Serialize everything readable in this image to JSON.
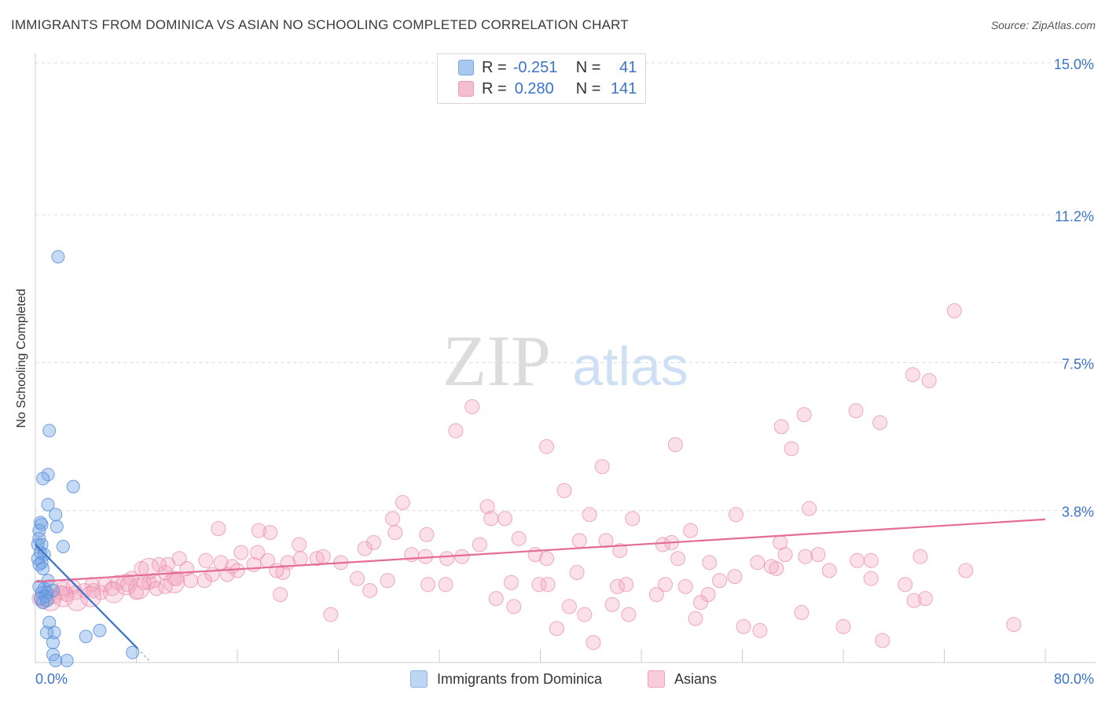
{
  "title": "IMMIGRANTS FROM DOMINICA VS ASIAN NO SCHOOLING COMPLETED CORRELATION CHART",
  "source": "Source: ZipAtlas.com",
  "watermark": {
    "zip": "ZIP",
    "atlas": "atlas"
  },
  "legend": {
    "r_label": "R =",
    "n_label": "N =",
    "rows": [
      {
        "r": "-0.251",
        "n": "41",
        "color": "#a9c8ef",
        "border": "#7da8e0"
      },
      {
        "r": "0.280",
        "n": "141",
        "color": "#f6bfd0",
        "border": "#ee9ab4"
      }
    ]
  },
  "bottom_legend": [
    {
      "label": "Immigrants from Dominica",
      "color": "#bcd6f4",
      "border": "#8db4e6"
    },
    {
      "label": "Asians",
      "color": "#f9ccd9",
      "border": "#efa3bb"
    }
  ],
  "chart_data": {
    "type": "scatter",
    "title": "IMMIGRANTS FROM DOMINICA VS ASIAN NO SCHOOLING COMPLETED CORRELATION CHART",
    "xlabel": "",
    "ylabel": "No Schooling Completed",
    "xlim": [
      0,
      80
    ],
    "ylim": [
      0,
      15
    ],
    "x_tick_labels": [
      "0.0%",
      "80.0%"
    ],
    "y_ticks": [
      {
        "value": 3.8,
        "label": "3.8%"
      },
      {
        "value": 7.5,
        "label": "7.5%"
      },
      {
        "value": 11.2,
        "label": "11.2%"
      },
      {
        "value": 15.0,
        "label": "15.0%"
      }
    ],
    "grid": true,
    "legend_position": "top-center",
    "series": [
      {
        "name": "Immigrants from Dominica",
        "color": "#6fa3e6",
        "stroke": "#5a8fd8",
        "trend": {
          "x": [
            0.0,
            8.1
          ],
          "y": [
            2.95,
            0.35
          ],
          "color": "#3b73c8",
          "dash_to_x": 9.0,
          "dash_to_y": 0.05
        },
        "points": [
          [
            1.8,
            10.15
          ],
          [
            1.1,
            5.8
          ],
          [
            1.0,
            4.7
          ],
          [
            0.6,
            4.6
          ],
          [
            3.0,
            4.4
          ],
          [
            1.0,
            3.95
          ],
          [
            1.6,
            3.7
          ],
          [
            0.4,
            3.5
          ],
          [
            0.5,
            3.45
          ],
          [
            0.3,
            3.3
          ],
          [
            1.7,
            3.4
          ],
          [
            0.3,
            3.1
          ],
          [
            0.2,
            2.95
          ],
          [
            0.5,
            2.95
          ],
          [
            2.2,
            2.9
          ],
          [
            0.4,
            2.75
          ],
          [
            0.7,
            2.7
          ],
          [
            0.2,
            2.6
          ],
          [
            0.5,
            2.5
          ],
          [
            0.3,
            2.45
          ],
          [
            0.6,
            2.35
          ],
          [
            1.0,
            2.05
          ],
          [
            0.7,
            1.85
          ],
          [
            1.4,
            1.8
          ],
          [
            0.9,
            1.75
          ],
          [
            0.5,
            1.75
          ],
          [
            0.8,
            1.65
          ],
          [
            0.4,
            1.6
          ],
          [
            0.9,
            1.55
          ],
          [
            0.6,
            1.5
          ],
          [
            1.1,
            1.0
          ],
          [
            1.5,
            0.75
          ],
          [
            0.9,
            0.75
          ],
          [
            5.1,
            0.8
          ],
          [
            4.0,
            0.65
          ],
          [
            1.4,
            0.5
          ],
          [
            1.4,
            0.2
          ],
          [
            2.5,
            0.05
          ],
          [
            7.7,
            0.25
          ],
          [
            1.6,
            0.05
          ],
          [
            0.3,
            1.9
          ]
        ]
      },
      {
        "name": "Asians",
        "color": "#f3a7bf",
        "stroke": "#ea8fab",
        "trend": {
          "x": [
            0.0,
            80.0
          ],
          "y": [
            2.02,
            3.58
          ],
          "color": "#e46c96"
        },
        "points": [
          [
            72.8,
            8.8
          ],
          [
            69.5,
            7.2
          ],
          [
            70.8,
            7.05
          ],
          [
            60.9,
            6.2
          ],
          [
            59.1,
            5.9
          ],
          [
            65.0,
            6.3
          ],
          [
            66.9,
            6.0
          ],
          [
            34.6,
            6.4
          ],
          [
            33.3,
            5.8
          ],
          [
            40.5,
            5.4
          ],
          [
            50.7,
            5.45
          ],
          [
            59.9,
            5.35
          ],
          [
            44.9,
            4.9
          ],
          [
            41.9,
            4.3
          ],
          [
            29.1,
            4.0
          ],
          [
            35.8,
            3.9
          ],
          [
            37.2,
            3.6
          ],
          [
            36.1,
            3.6
          ],
          [
            43.9,
            3.7
          ],
          [
            47.3,
            3.6
          ],
          [
            55.5,
            3.7
          ],
          [
            61.3,
            3.85
          ],
          [
            28.3,
            3.6
          ],
          [
            31.0,
            3.2
          ],
          [
            28.5,
            3.25
          ],
          [
            26.8,
            3.0
          ],
          [
            38.3,
            3.1
          ],
          [
            43.1,
            3.05
          ],
          [
            45.2,
            3.05
          ],
          [
            51.9,
            3.3
          ],
          [
            49.7,
            2.95
          ],
          [
            50.4,
            3.0
          ],
          [
            59.0,
            3.0
          ],
          [
            35.2,
            2.95
          ],
          [
            20.9,
            2.95
          ],
          [
            22.3,
            2.6
          ],
          [
            18.6,
            3.25
          ],
          [
            17.7,
            3.3
          ],
          [
            14.5,
            3.35
          ],
          [
            26.1,
            2.85
          ],
          [
            24.2,
            2.5
          ],
          [
            22.8,
            2.65
          ],
          [
            21.0,
            2.6
          ],
          [
            20.0,
            2.5
          ],
          [
            18.4,
            2.55
          ],
          [
            17.6,
            2.75
          ],
          [
            16.3,
            2.75
          ],
          [
            15.6,
            2.4
          ],
          [
            14.7,
            2.5
          ],
          [
            13.5,
            2.55
          ],
          [
            11.4,
            2.6
          ],
          [
            10.5,
            2.45
          ],
          [
            9.8,
            2.45
          ],
          [
            8.4,
            2.35
          ],
          [
            9.0,
            2.0
          ],
          [
            29.8,
            2.7
          ],
          [
            30.9,
            2.65
          ],
          [
            32.6,
            2.6
          ],
          [
            33.8,
            2.65
          ],
          [
            39.6,
            2.7
          ],
          [
            40.5,
            2.6
          ],
          [
            46.3,
            2.8
          ],
          [
            50.9,
            2.6
          ],
          [
            53.4,
            2.5
          ],
          [
            57.2,
            2.5
          ],
          [
            58.3,
            2.4
          ],
          [
            59.4,
            2.7
          ],
          [
            61.0,
            2.65
          ],
          [
            62.0,
            2.7
          ],
          [
            65.1,
            2.55
          ],
          [
            66.2,
            2.55
          ],
          [
            70.1,
            2.65
          ],
          [
            73.7,
            2.3
          ],
          [
            19.6,
            2.25
          ],
          [
            19.1,
            2.3
          ],
          [
            17.3,
            2.45
          ],
          [
            16.0,
            2.3
          ],
          [
            15.2,
            2.2
          ],
          [
            14.0,
            2.2
          ],
          [
            12.3,
            2.05
          ],
          [
            11.0,
            2.1
          ],
          [
            10.3,
            2.25
          ],
          [
            12.0,
            2.35
          ],
          [
            9.4,
            2.05
          ],
          [
            8.6,
            2.0
          ],
          [
            7.6,
            2.1
          ],
          [
            6.5,
            2.0
          ],
          [
            5.5,
            1.95
          ],
          [
            4.5,
            1.95
          ],
          [
            3.9,
            1.8
          ],
          [
            3.2,
            1.75
          ],
          [
            2.5,
            1.7
          ],
          [
            2.0,
            1.75
          ],
          [
            1.5,
            1.65
          ],
          [
            1.0,
            1.6
          ],
          [
            0.6,
            1.55
          ],
          [
            0.3,
            1.6
          ],
          [
            1.2,
            1.9
          ],
          [
            2.2,
            1.85
          ],
          [
            3.0,
            1.9
          ],
          [
            4.6,
            1.8
          ],
          [
            5.2,
            1.75
          ],
          [
            6.1,
            1.85
          ],
          [
            7.3,
            1.95
          ],
          [
            8.0,
            1.75
          ],
          [
            9.6,
            1.85
          ],
          [
            10.3,
            1.9
          ],
          [
            11.2,
            2.1
          ],
          [
            13.4,
            2.05
          ],
          [
            25.5,
            2.1
          ],
          [
            27.9,
            2.05
          ],
          [
            31.1,
            1.95
          ],
          [
            32.5,
            1.95
          ],
          [
            37.7,
            2.0
          ],
          [
            39.9,
            1.95
          ],
          [
            40.6,
            1.95
          ],
          [
            42.9,
            2.25
          ],
          [
            46.1,
            1.9
          ],
          [
            46.8,
            1.95
          ],
          [
            49.9,
            1.95
          ],
          [
            51.5,
            1.9
          ],
          [
            54.2,
            2.05
          ],
          [
            55.4,
            2.15
          ],
          [
            58.7,
            2.35
          ],
          [
            62.9,
            2.3
          ],
          [
            66.2,
            2.1
          ],
          [
            68.9,
            1.95
          ],
          [
            26.5,
            1.8
          ],
          [
            36.5,
            1.6
          ],
          [
            37.9,
            1.4
          ],
          [
            42.3,
            1.4
          ],
          [
            45.7,
            1.45
          ],
          [
            49.2,
            1.7
          ],
          [
            52.7,
            1.5
          ],
          [
            53.3,
            1.7
          ],
          [
            60.7,
            1.25
          ],
          [
            69.6,
            1.55
          ],
          [
            70.5,
            1.6
          ],
          [
            77.5,
            0.95
          ],
          [
            19.4,
            1.7
          ],
          [
            23.4,
            1.2
          ],
          [
            41.3,
            0.85
          ],
          [
            43.5,
            1.2
          ],
          [
            47.0,
            1.2
          ],
          [
            52.3,
            1.1
          ],
          [
            56.1,
            0.9
          ],
          [
            64.0,
            0.9
          ],
          [
            67.1,
            0.55
          ],
          [
            57.4,
            0.8
          ],
          [
            44.2,
            0.5
          ]
        ],
        "big_points": [
          [
            2.2,
            1.65
          ],
          [
            3.3,
            1.55
          ],
          [
            4.4,
            1.65
          ],
          [
            6.2,
            1.75
          ],
          [
            7.2,
            1.95
          ],
          [
            1.2,
            1.55
          ],
          [
            8.2,
            1.85
          ],
          [
            9.0,
            2.35
          ],
          [
            11.0,
            2.0
          ]
        ]
      }
    ]
  }
}
